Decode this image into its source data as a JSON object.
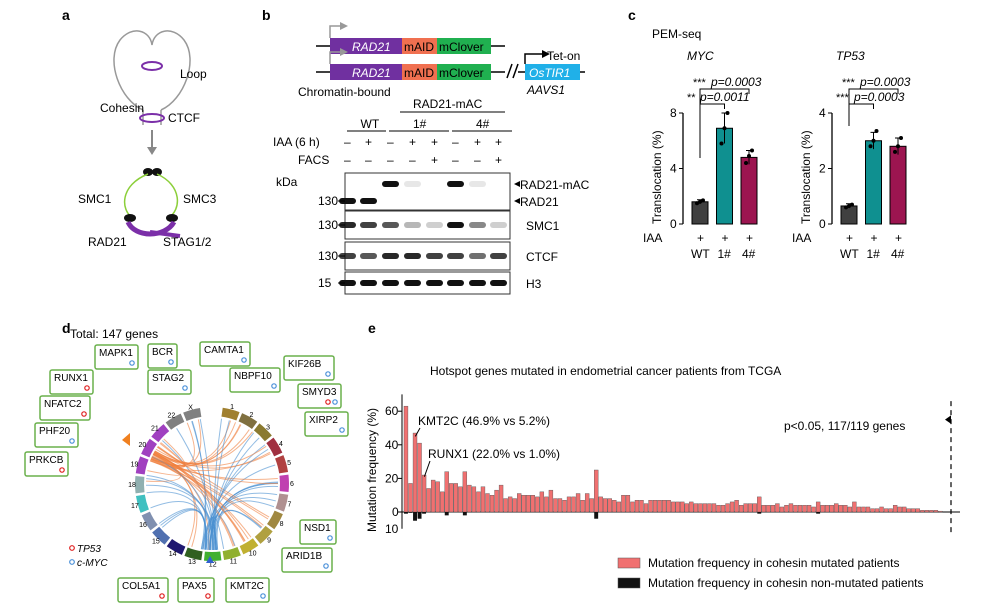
{
  "panels": {
    "a": {
      "letter": "a",
      "labels": {
        "loop": "Loop",
        "cohesin": "Cohesin",
        "ctcf": "CTCF",
        "smc1": "SMC1",
        "smc3": "SMC3",
        "rad21": "RAD21",
        "stag": "STAG1/2"
      }
    },
    "b": {
      "letter": "b",
      "construct": {
        "rad21": "RAD21",
        "maid": "mAID",
        "mclover": "mClover",
        "teton": "Tet-on",
        "ostir1": "OsTIR1",
        "aavs1": "AAVS1"
      },
      "fraction": "Chromatin-bound",
      "group_header": "RAD21-mAC",
      "groups": [
        "WT",
        "1#",
        "4#"
      ],
      "rows": [
        {
          "label": "IAA (6 h)",
          "values": [
            "–",
            "+",
            "–",
            "+",
            "+",
            "–",
            "+",
            "+"
          ]
        },
        {
          "label": "FACS",
          "values": [
            "–",
            "–",
            "–",
            "–",
            "+",
            "–",
            "–",
            "+"
          ]
        }
      ],
      "kda": "kDa",
      "blots": [
        {
          "marker": "",
          "label": "RAD21-mAC"
        },
        {
          "marker": "130",
          "label": "RAD21"
        },
        {
          "marker": "130",
          "label": "SMC1"
        },
        {
          "marker": "130",
          "label": "CTCF"
        },
        {
          "marker": "15",
          "label": "H3"
        }
      ]
    },
    "c": {
      "letter": "c",
      "title": "PEM-seq"
    },
    "d": {
      "letter": "d",
      "total": "Total: 147 genes",
      "genes": [
        {
          "name": "MAPK1",
          "marks": [
            "myc"
          ]
        },
        {
          "name": "BCR",
          "marks": [
            "myc"
          ]
        },
        {
          "name": "RUNX1",
          "marks": [
            "tp53"
          ]
        },
        {
          "name": "STAG2",
          "marks": [
            "myc"
          ]
        },
        {
          "name": "CAMTA1",
          "marks": [
            "myc"
          ]
        },
        {
          "name": "NFATC2",
          "marks": [
            "tp53"
          ]
        },
        {
          "name": "NBPF10",
          "marks": [
            "myc"
          ]
        },
        {
          "name": "KIF26B",
          "marks": [
            "myc"
          ]
        },
        {
          "name": "SMYD3",
          "marks": [
            "tp53",
            "myc"
          ]
        },
        {
          "name": "PHF20",
          "marks": [
            "myc"
          ]
        },
        {
          "name": "XIRP2",
          "marks": [
            "myc"
          ]
        },
        {
          "name": "PRKCB",
          "marks": [
            "tp53"
          ]
        },
        {
          "name": "NSD1",
          "marks": [
            "myc"
          ]
        },
        {
          "name": "ARID1B",
          "marks": [
            "myc"
          ]
        },
        {
          "name": "COL5A1",
          "marks": [
            "tp53"
          ]
        },
        {
          "name": "PAX5",
          "marks": [
            "tp53"
          ]
        },
        {
          "name": "KMT2C",
          "marks": [
            "myc"
          ]
        }
      ],
      "chromosomes": [
        "1",
        "2",
        "3",
        "4",
        "5",
        "6",
        "7",
        "8",
        "9",
        "10",
        "11",
        "12",
        "13",
        "14",
        "15",
        "16",
        "17",
        "18",
        "19",
        "20",
        "21",
        "22",
        "X"
      ],
      "legend": [
        {
          "label": "TP53",
          "color": "#e02020"
        },
        {
          "label": "c-MYC",
          "color": "#4a90d9"
        }
      ]
    },
    "e": {
      "letter": "e"
    }
  },
  "chart_data": [
    {
      "type": "bar",
      "title": "MYC",
      "ylabel": "Translocation (%)",
      "ylim": [
        0,
        8
      ],
      "yticks": [
        "0",
        "4",
        "8"
      ],
      "xrow_label": "IAA",
      "xrow_values": [
        "+",
        "+",
        "+"
      ],
      "categories": [
        "WT",
        "1#",
        "4#"
      ],
      "values": [
        1.6,
        6.9,
        4.8
      ],
      "errors": [
        0.15,
        1.1,
        0.5
      ],
      "colors": [
        "#404040",
        "#0f9090",
        "#9c1550"
      ],
      "points": [
        [
          1.5,
          1.6,
          1.7
        ],
        [
          5.8,
          6.9,
          8.0
        ],
        [
          4.4,
          4.9,
          5.3
        ]
      ],
      "annotations": [
        {
          "stars": "**",
          "text": "p=0.0011",
          "pair": [
            0,
            1
          ]
        },
        {
          "stars": "***",
          "text": "p=0.0003",
          "pair": [
            0,
            2
          ]
        }
      ]
    },
    {
      "type": "bar",
      "title": "TP53",
      "ylabel": "Translocation (%)",
      "ylim": [
        0,
        4
      ],
      "yticks": [
        "0",
        "2",
        "4"
      ],
      "xrow_label": "IAA",
      "xrow_values": [
        "+",
        "+",
        "+"
      ],
      "categories": [
        "WT",
        "1#",
        "4#"
      ],
      "values": [
        0.65,
        3.0,
        2.8
      ],
      "errors": [
        0.08,
        0.3,
        0.3
      ],
      "colors": [
        "#404040",
        "#0f9090",
        "#9c1550"
      ],
      "points": [
        [
          0.6,
          0.65,
          0.7
        ],
        [
          2.8,
          3.0,
          3.35
        ],
        [
          2.6,
          2.8,
          3.1
        ]
      ],
      "annotations": [
        {
          "stars": "***",
          "text": "p=0.0003",
          "pair": [
            0,
            1
          ]
        },
        {
          "stars": "***",
          "text": "p=0.0003",
          "pair": [
            0,
            2
          ]
        }
      ]
    },
    {
      "type": "bar",
      "title": "Hotspot genes mutated in endometrial cancer patients from TCGA",
      "ylabel": "Mutation frequency (%)",
      "ylim": [
        -10,
        70
      ],
      "yticks": [
        "0",
        "20",
        "40",
        "60"
      ],
      "ytick_below": "10",
      "series": [
        {
          "name": "Mutation frequency in cohesin mutated patients",
          "color": "#f07070",
          "values": [
            63,
            17,
            47,
            41,
            22,
            14,
            19,
            18,
            12,
            24,
            17,
            17,
            15,
            24,
            16,
            15,
            12,
            15,
            11,
            10,
            13,
            16,
            8,
            9,
            8,
            11,
            10,
            10,
            10,
            9,
            12,
            9,
            13,
            8,
            8,
            7,
            9,
            9,
            11,
            7,
            11,
            8,
            25,
            9,
            8,
            8,
            7,
            6,
            10,
            10,
            6,
            7,
            7,
            5,
            7,
            7,
            7,
            7,
            7,
            6,
            6,
            6,
            5,
            6,
            5,
            5,
            5,
            5,
            5,
            4,
            4,
            5,
            6,
            7,
            4,
            5,
            5,
            5,
            9,
            4,
            4,
            4,
            5,
            3,
            4,
            5,
            4,
            4,
            4,
            4,
            3,
            6,
            4,
            4,
            4,
            5,
            4,
            4,
            3,
            6,
            3,
            3,
            3,
            2,
            2,
            3,
            2,
            2,
            4,
            3,
            3,
            2,
            2,
            2,
            1,
            1,
            1,
            1,
            0.5
          ]
        },
        {
          "name": "Mutation frequency in cohesin non-mutated patients",
          "color": "#111111",
          "values": [
            1,
            0.5,
            5.2,
            4,
            1,
            0,
            0,
            0,
            0,
            2,
            0,
            0,
            0,
            2,
            0,
            0,
            0,
            0,
            0,
            0,
            0,
            0,
            0,
            0,
            0,
            0,
            0,
            0,
            0,
            0,
            0,
            0,
            0,
            0,
            0,
            0,
            0,
            0,
            0,
            0,
            0,
            0,
            4,
            0,
            0,
            0,
            0,
            0,
            0,
            0,
            0,
            0,
            0,
            0,
            0,
            0,
            0,
            0,
            0,
            0,
            0,
            0,
            0,
            0,
            0,
            0,
            0,
            0,
            0,
            0,
            0,
            0,
            0,
            0,
            0,
            0,
            0,
            0,
            1,
            0,
            0,
            0,
            0,
            0,
            0,
            0,
            0,
            0,
            0,
            0,
            0,
            1,
            0,
            0,
            0,
            0,
            0,
            0,
            0,
            0,
            0,
            0,
            0,
            0,
            0,
            0,
            0,
            0,
            0,
            0,
            0,
            0,
            0,
            0,
            0,
            0,
            0,
            0,
            0
          ]
        }
      ],
      "annotations": [
        {
          "text": "KMT2C (46.9% vs 5.2%)",
          "index": 2
        },
        {
          "text": "RUNX1 (22.0% vs 1.0%)",
          "index": 4
        },
        {
          "text": "p<0.05, 117/119 genes"
        }
      ]
    }
  ]
}
